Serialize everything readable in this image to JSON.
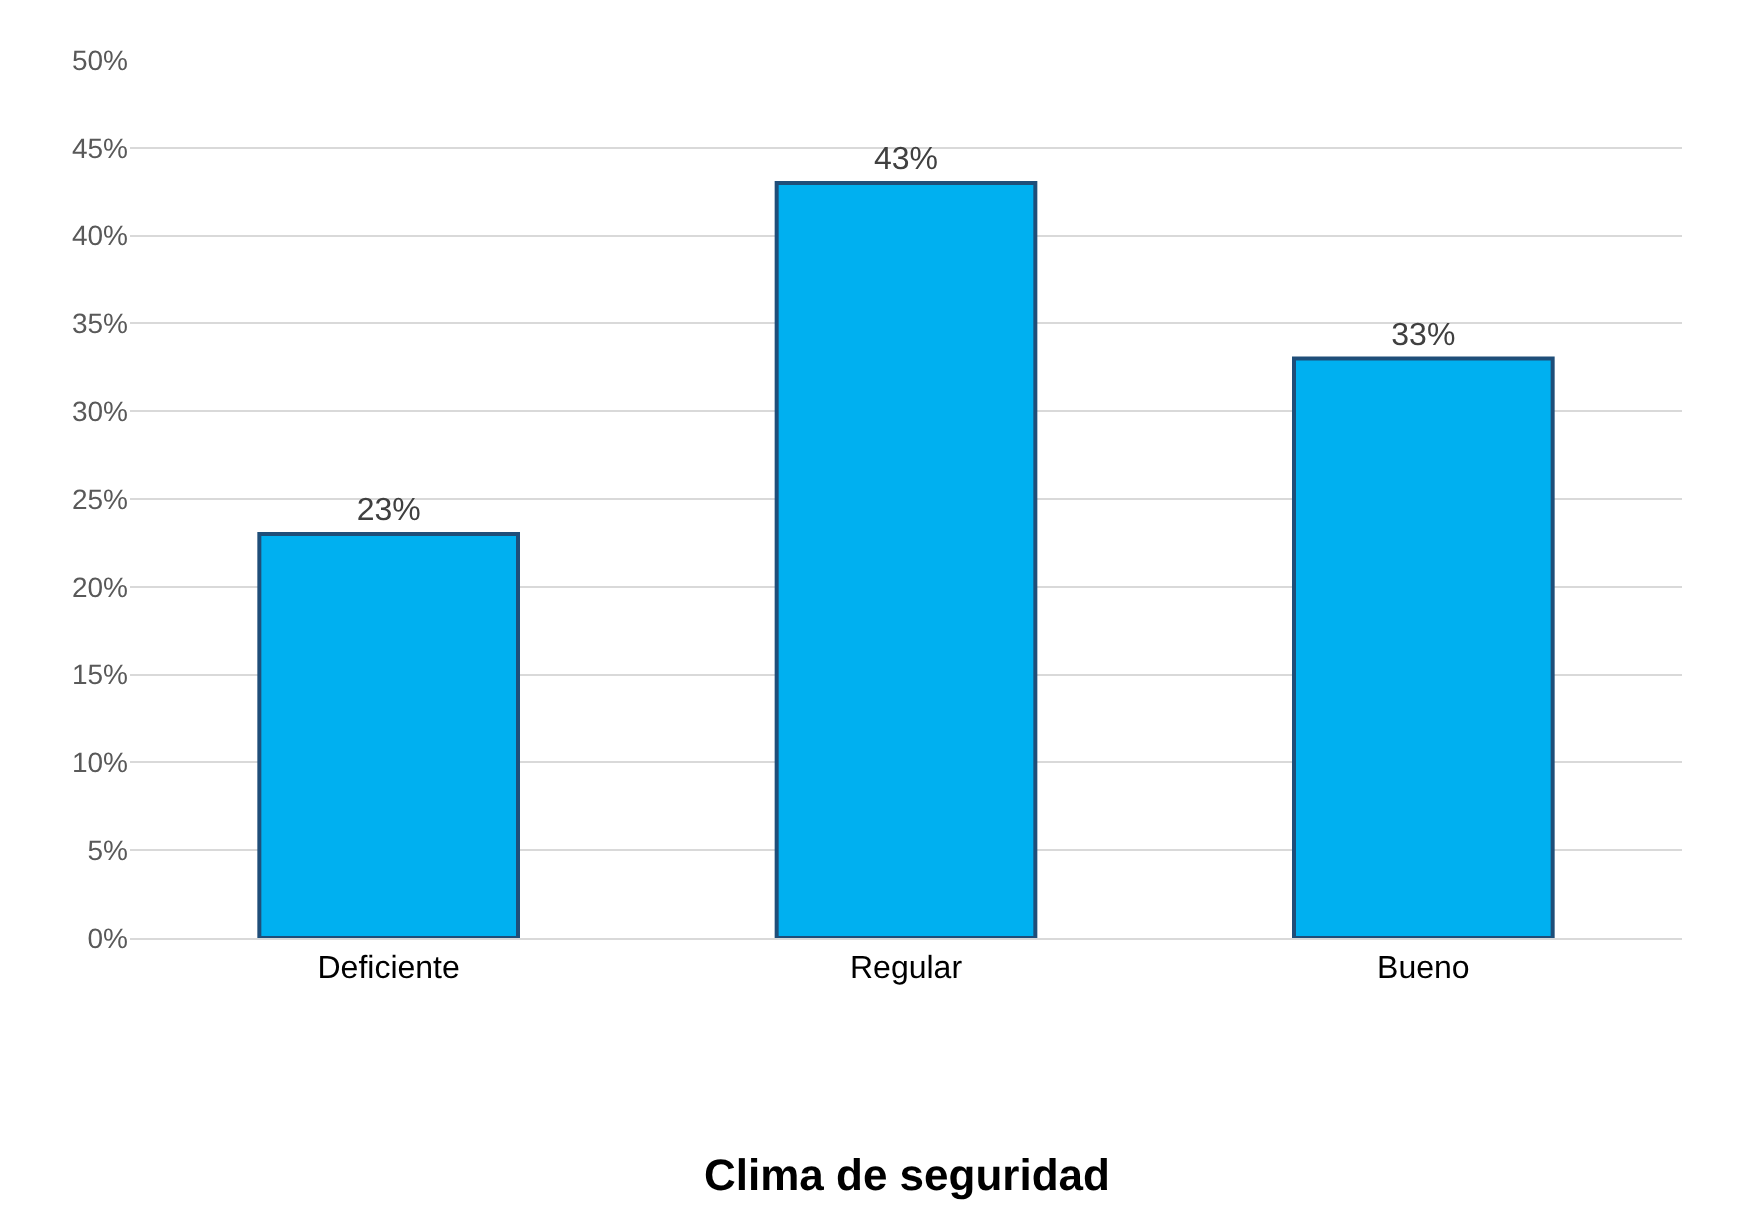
{
  "chart_data": {
    "type": "bar",
    "title": "Clima de seguridad",
    "categories": [
      "Deficiente",
      "Regular",
      "Bueno"
    ],
    "values": [
      23,
      43,
      33
    ],
    "value_labels": [
      "23%",
      "43%",
      "33%"
    ],
    "color": "#00b0f0",
    "ylim": [
      0,
      50
    ],
    "yticks": [
      {
        "value": 0,
        "label": "0%"
      },
      {
        "value": 5,
        "label": "5%"
      },
      {
        "value": 10,
        "label": "10%"
      },
      {
        "value": 15,
        "label": "15%"
      },
      {
        "value": 20,
        "label": "20%"
      },
      {
        "value": 25,
        "label": "25%"
      },
      {
        "value": 30,
        "label": "30%"
      },
      {
        "value": 35,
        "label": "35%"
      },
      {
        "value": 40,
        "label": "40%"
      },
      {
        "value": 45,
        "label": "45%"
      },
      {
        "value": 50,
        "label": "50%"
      }
    ],
    "grid": "y",
    "legend": false
  }
}
